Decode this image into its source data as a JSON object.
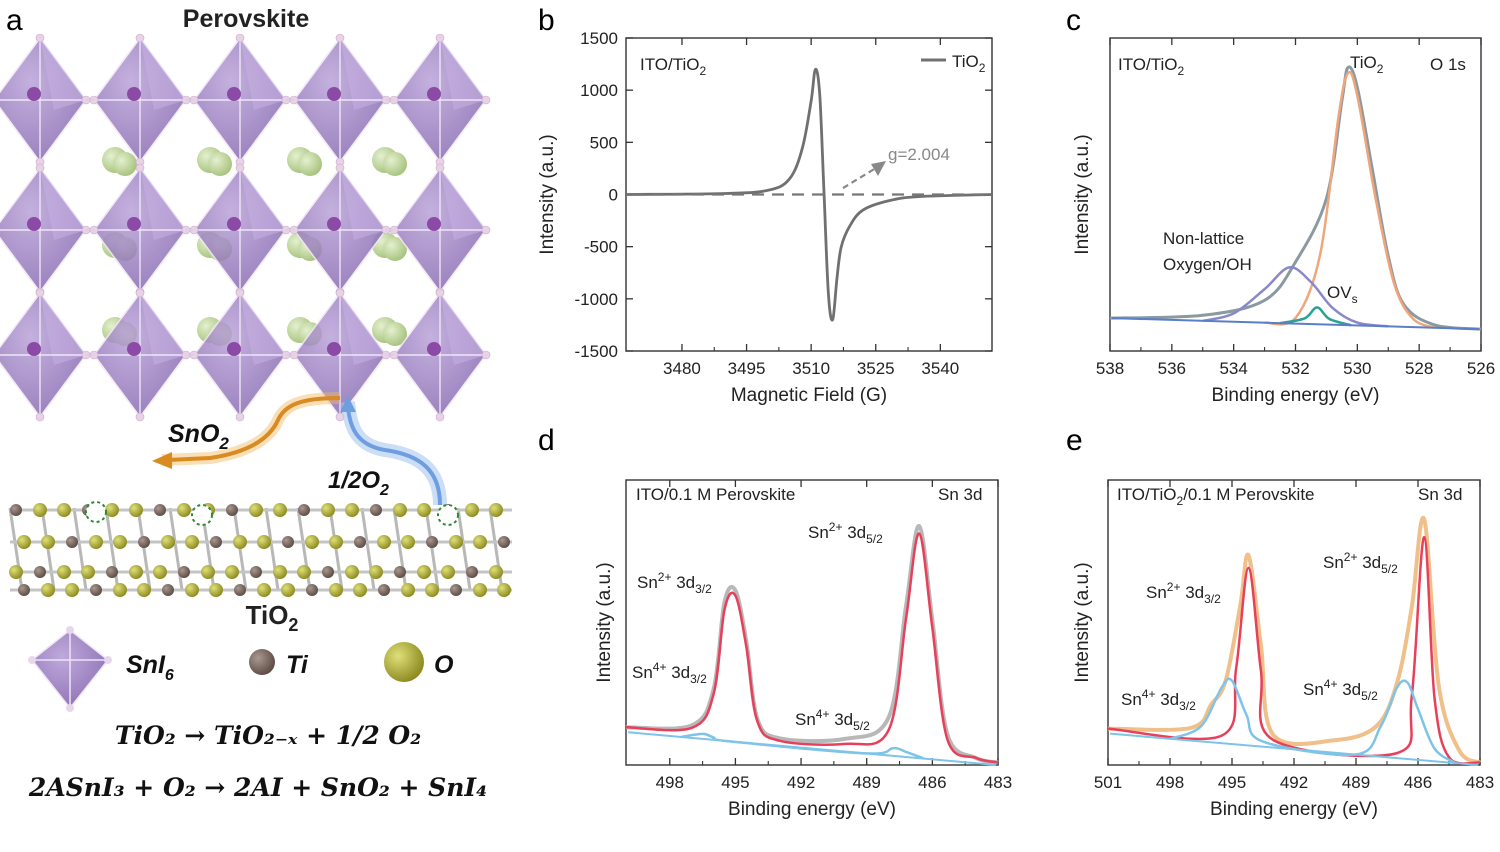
{
  "panel_a": {
    "letter": "a",
    "title": "Perovskite",
    "sno2_label": "SnO",
    "sno2_sub": "2",
    "o2_label": "1/2O",
    "o2_sub": "2",
    "tio2_label": "TiO",
    "tio2_sub": "2",
    "legend": {
      "sni6_main": "SnI",
      "sni6_sub": "6",
      "ti": "Ti",
      "o": "O"
    },
    "equation1": "TiO₂ → TiO₂₋ₓ + 1/2 O₂",
    "equation2": "2ASnI₃ + O₂ → 2AI + SnO₂ + SnI₄",
    "colors": {
      "octahedron": "#9b7fc0",
      "a_site": "#b9d19a",
      "ti": "#7a6a62",
      "o": "#b5b33a",
      "sno2_arrow": "#e8952a",
      "o2_arrow": "#8fb6e8"
    }
  },
  "chart_data": [
    {
      "panel": "b",
      "type": "line",
      "title": "",
      "xlabel": "Magnetic Field (G)",
      "ylabel": "Intensity (a.u.)",
      "xlim": [
        3467,
        3552
      ],
      "ylim": [
        -1500,
        1500
      ],
      "xticks": [
        3480,
        3495,
        3510,
        3525,
        3540
      ],
      "yticks": [
        -1500,
        -1000,
        -500,
        0,
        500,
        1000,
        1500
      ],
      "sample_label": "ITO/TiO₂",
      "legend": [
        "TiO₂"
      ],
      "annotations": [
        "g=2.004"
      ],
      "series": [
        {
          "name": "TiO₂",
          "color": "#707070",
          "x": [
            3467,
            3490,
            3500,
            3505,
            3508,
            3510,
            3511,
            3512,
            3513,
            3514,
            3515,
            3516,
            3517,
            3519,
            3522,
            3528,
            3535,
            3552
          ],
          "y": [
            0,
            10,
            40,
            150,
            450,
            900,
            1200,
            950,
            0,
            -950,
            -1200,
            -800,
            -500,
            -300,
            -150,
            -60,
            -20,
            0
          ]
        }
      ]
    },
    {
      "panel": "c",
      "type": "line",
      "title": "",
      "xlabel": "Binding energy (eV)",
      "ylabel": "Intensity (a.u.)",
      "xlim": [
        538,
        526
      ],
      "ylim": [
        0,
        1
      ],
      "xticks": [
        538,
        536,
        534,
        532,
        530,
        528,
        526
      ],
      "sample_label": "ITO/TiO₂",
      "core_level": "O 1s",
      "annotations": [
        "TiO₂",
        "Non-lattice",
        "Oxygen/OH",
        "OV"
      ],
      "series": [
        {
          "name": "",
          "color": "#8a9aa0",
          "x": [
            538,
            535,
            533,
            532,
            531,
            530.5,
            530.3,
            530,
            529.5,
            529,
            528.5,
            527.5,
            526
          ],
          "y": [
            0.0,
            0.02,
            0.08,
            0.22,
            0.45,
            0.8,
            0.92,
            0.85,
            0.55,
            0.25,
            0.08,
            0.01,
            0.0
          ]
        },
        {
          "name": "",
          "color": "#f0a57a",
          "x": [
            533,
            532,
            531.2,
            530.6,
            530.3,
            530,
            529.4,
            528.8,
            528.2,
            527.5
          ],
          "y": [
            0,
            0.02,
            0.25,
            0.75,
            0.9,
            0.82,
            0.45,
            0.15,
            0.03,
            0
          ]
        },
        {
          "name": "",
          "color": "#8a88c8",
          "x": [
            535,
            534,
            533,
            532.2,
            531.5,
            530.8,
            530,
            529
          ],
          "y": [
            0,
            0.03,
            0.12,
            0.2,
            0.15,
            0.06,
            0.01,
            0
          ]
        },
        {
          "name": "",
          "color": "#2aa394",
          "x": [
            532.5,
            531.7,
            531.3,
            530.9,
            530.2
          ],
          "y": [
            0,
            0.02,
            0.06,
            0.02,
            0
          ]
        }
      ]
    },
    {
      "panel": "d",
      "type": "line",
      "title": "",
      "xlabel": "Binding energy (eV)",
      "ylabel": "Intensity (a.u.)",
      "xlim": [
        500,
        483
      ],
      "ylim": [
        0,
        1
      ],
      "xticks": [
        498,
        495,
        492,
        489,
        486,
        483
      ],
      "sample_label": "ITO/0.1 M Perovskite",
      "core_level": "Sn 3d",
      "annotations": [
        "Sn²⁺ 3d₅/₂",
        "Sn²⁺ 3d₃/₂",
        "Sn⁴⁺ 3d₃/₂",
        "Sn⁴⁺ 3d₅/₂"
      ],
      "series": [
        {
          "name": "",
          "color": "#b8b8b8",
          "x": [
            500,
            497,
            496,
            495.5,
            495,
            494.5,
            494,
            493,
            490,
            488,
            487.2,
            486.6,
            486,
            485.3,
            484,
            483
          ],
          "y": [
            0.02,
            0.05,
            0.2,
            0.55,
            0.6,
            0.4,
            0.1,
            0.03,
            0.05,
            0.15,
            0.6,
            0.92,
            0.55,
            0.1,
            0.02,
            0.01
          ]
        },
        {
          "name": "",
          "color": "#e8405a",
          "x": [
            500,
            497,
            496,
            495.5,
            495,
            494.5,
            494,
            493,
            490,
            488,
            487.2,
            486.6,
            486,
            485.3,
            484,
            483
          ],
          "y": [
            0.02,
            0.04,
            0.18,
            0.52,
            0.58,
            0.38,
            0.09,
            0.02,
            0.03,
            0.1,
            0.55,
            0.89,
            0.52,
            0.08,
            0.02,
            0.01
          ]
        },
        {
          "name": "",
          "color": "#7ec4e8",
          "x": [
            497.5,
            496.5,
            496,
            495.3,
            489,
            487.8,
            487.2,
            486.4
          ],
          "y": [
            0.0,
            0.02,
            0.01,
            0.0,
            0.0,
            0.03,
            0.02,
            0.0
          ]
        }
      ]
    },
    {
      "panel": "e",
      "type": "line",
      "title": "",
      "xlabel": "Binding energy (eV)",
      "ylabel": "Intensity (a.u.)",
      "xlim": [
        501,
        483
      ],
      "ylim": [
        0,
        1
      ],
      "xticks": [
        501,
        498,
        495,
        492,
        489,
        486,
        483
      ],
      "sample_label": "ITO/TiO₂/0.1 M Perovskite",
      "core_level": "Sn 3d",
      "annotations": [
        "Sn²⁺ 3d₅/₂",
        "Sn²⁺ 3d₃/₂",
        "Sn⁴⁺ 3d₃/₂",
        "Sn⁴⁺ 3d₅/₂"
      ],
      "series": [
        {
          "name": "",
          "color": "#f0c08a",
          "x": [
            501,
            497,
            496,
            495.3,
            494.6,
            494.2,
            493.6,
            493,
            490,
            488,
            487,
            486.3,
            485.7,
            485,
            484,
            483
          ],
          "y": [
            0.02,
            0.05,
            0.15,
            0.25,
            0.55,
            0.75,
            0.4,
            0.05,
            0.05,
            0.12,
            0.3,
            0.6,
            0.95,
            0.3,
            0.05,
            0.01
          ]
        },
        {
          "name": "",
          "color": "#e8405a",
          "x": [
            501,
            495.5,
            494.8,
            494.2,
            493.6,
            493,
            487,
            486.3,
            485.7,
            485.2,
            484.5,
            483
          ],
          "y": [
            0.02,
            0.03,
            0.3,
            0.7,
            0.3,
            0.03,
            0.02,
            0.25,
            0.88,
            0.25,
            0.02,
            0.01
          ]
        },
        {
          "name": "",
          "color": "#7ec4e8",
          "x": [
            498,
            496.5,
            495.5,
            495,
            494.3,
            493.5,
            489,
            487.8,
            487,
            486.5,
            486,
            485.2,
            484.2
          ],
          "y": [
            0.0,
            0.06,
            0.22,
            0.25,
            0.12,
            0.02,
            0.0,
            0.12,
            0.28,
            0.3,
            0.2,
            0.05,
            0.0
          ]
        }
      ]
    }
  ]
}
